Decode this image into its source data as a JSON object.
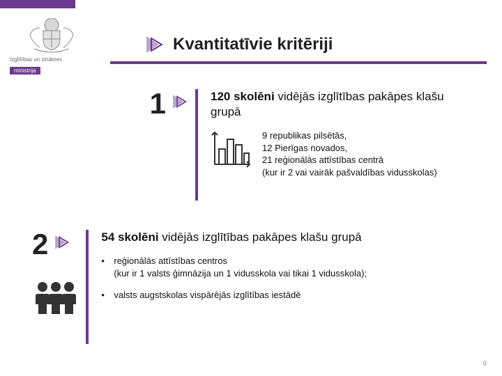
{
  "colors": {
    "accent": "#6b3a8f",
    "arrow_fill": "#b9a4cb",
    "arrow_stroke": "#6b3a8f",
    "text": "#222222",
    "muted": "#9a9a9a",
    "icon_stroke": "#333333"
  },
  "logo": {
    "line1": "Izglītības un zinātnes",
    "line2": "ministrija"
  },
  "title": "Kvantitatīvie kritēriji",
  "section1": {
    "number": "1",
    "headline_bold": "120 skolēni",
    "headline_rest": " vidējās izglītības pakāpes klašu grupā",
    "detail": "9 republikas pilsētās,\n12 Pierīgas novados,\n21 reģionālās attīstības centrā\n(kur ir 2 vai vairāk pašvaldības vidusskolas)"
  },
  "section2": {
    "number": "2",
    "headline_bold": "54 skolēni",
    "headline_rest": " vidējās izglītības pakāpes klašu grupā",
    "bullets": [
      "reģionālās attīstības centros\n(kur ir 1 valsts ģimnāzija un 1 vidusskola vai tikai 1 vidusskola);",
      "valsts augstskolas vispārējās izglītības iestādē"
    ]
  },
  "page_number": "9"
}
